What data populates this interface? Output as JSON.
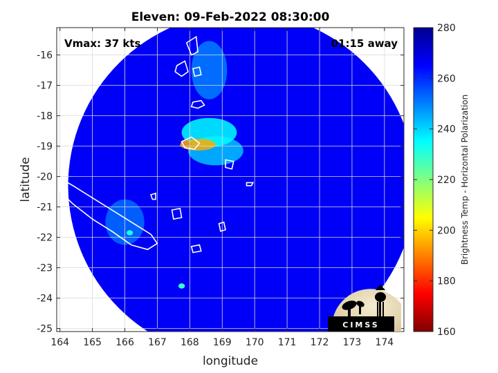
{
  "colors": {
    "background": "#ffffff",
    "grid": "#d9d9d9",
    "axis": "#262626",
    "coastline": "#ffffff",
    "colormap": [
      "#7f0000",
      "#ff0000",
      "#ff8000",
      "#ffff00",
      "#80ff80",
      "#00ffff",
      "#0080ff",
      "#0000ff",
      "#00008f"
    ]
  },
  "chart_data": {
    "type": "heatmap",
    "title": "Eleven: 09-Feb-2022 08:30:00",
    "xlabel": "longitude",
    "ylabel": "latitude",
    "xlim": [
      163.9,
      174.6
    ],
    "ylim": [
      -25.1,
      -15.1
    ],
    "xticks": [
      "164",
      "165",
      "166",
      "167",
      "168",
      "169",
      "170",
      "171",
      "172",
      "173",
      "174"
    ],
    "yticks": [
      "-16",
      "-17",
      "-18",
      "-19",
      "-20",
      "-21",
      "-22",
      "-23",
      "-24",
      "-25"
    ],
    "grid": true,
    "annotations": {
      "vmax": "Vmax: 37 kts",
      "time_offset": "01:15 away"
    },
    "colorbar": {
      "label": "Brightness Temp - Horizontal Polarization",
      "range": [
        160,
        280
      ],
      "ticks": [
        "160",
        "180",
        "200",
        "220",
        "240",
        "260",
        "280"
      ],
      "colormap": "jet (reversed)"
    },
    "swath": {
      "center": [
        169.6,
        -20.3
      ],
      "radius_deg": 5.35,
      "background_temp": 266
    },
    "features": [
      {
        "name": "cold core",
        "lon": 168.25,
        "lat": -18.95,
        "temp": 195
      },
      {
        "name": "convective band",
        "lon": 168.6,
        "lat": -18.55,
        "temp": 235
      },
      {
        "name": "convective band",
        "lon": 168.8,
        "lat": -19.15,
        "temp": 242
      },
      {
        "name": "north band",
        "lon": 168.6,
        "lat": -16.5,
        "temp": 250
      },
      {
        "name": "west band",
        "lon": 166.0,
        "lat": -21.5,
        "temp": 252
      },
      {
        "name": "spot",
        "lon": 166.15,
        "lat": -21.85,
        "temp": 232
      },
      {
        "name": "spot",
        "lon": 167.75,
        "lat": -23.6,
        "temp": 228
      }
    ],
    "logo": "CIMSS"
  }
}
